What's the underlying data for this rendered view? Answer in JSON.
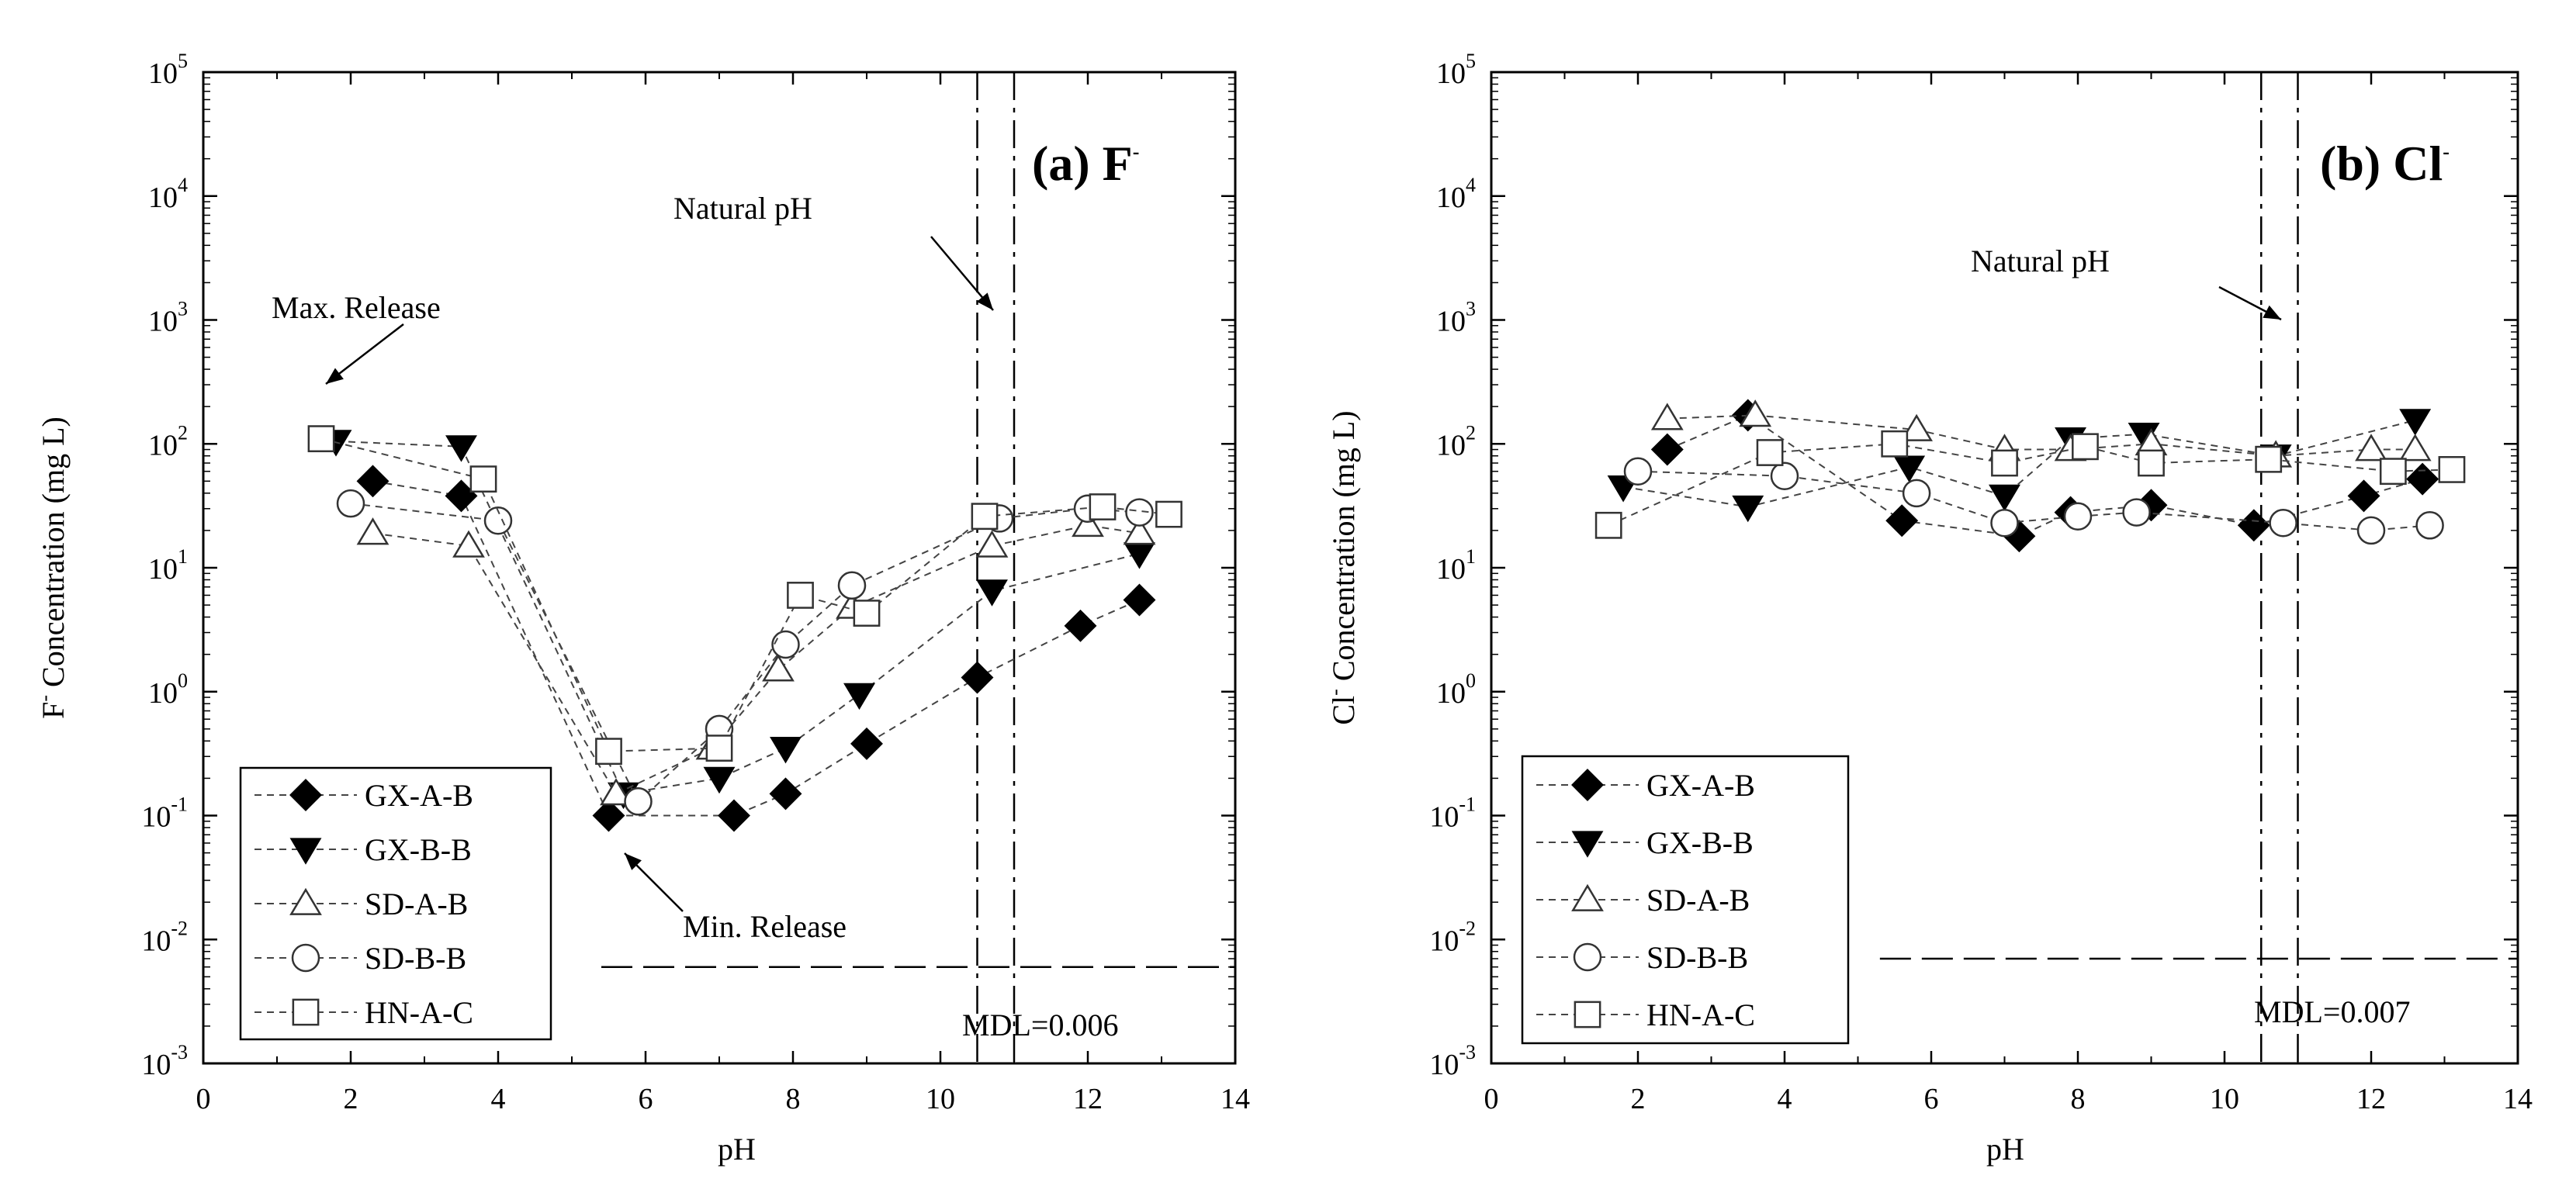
{
  "charts": [
    {
      "id": "a",
      "panel_title": "(a) F",
      "panel_title_sup": "-",
      "ylabel_main": "Concentration (mg L)",
      "ylabel_prefix": "F",
      "ylabel_sup": "-",
      "xlabel": "pH",
      "mdl_label": "MDL=0.006",
      "natural_ph_label": "Natural pH",
      "max_release_label": "Max. Release",
      "min_release_label": "Min. Release"
    },
    {
      "id": "b",
      "panel_title": "(b) Cl",
      "panel_title_sup": "-",
      "ylabel_main": "Concentration (mg L)",
      "ylabel_prefix": "Cl",
      "ylabel_sup": "-",
      "xlabel": "pH",
      "mdl_label": "MDL=0.007",
      "natural_ph_label": "Natural pH"
    }
  ],
  "chart_data": [
    {
      "type": "scatter",
      "title": "(a) F-",
      "xlabel": "pH",
      "ylabel": "F- Concentration (mg L)",
      "xlim": [
        0,
        14
      ],
      "ylim": [
        0.001,
        100000
      ],
      "yscale": "log",
      "x_ticks": [
        "0",
        "2",
        "4",
        "6",
        "8",
        "10",
        "12",
        "14"
      ],
      "y_ticks": [
        {
          "base": "10",
          "exp": "5"
        },
        {
          "base": "10",
          "exp": "4"
        },
        {
          "base": "10",
          "exp": "3"
        },
        {
          "base": "10",
          "exp": "2"
        },
        {
          "base": "10",
          "exp": "1"
        },
        {
          "base": "10",
          "exp": "0"
        },
        {
          "base": "10",
          "exp": "-1"
        },
        {
          "base": "10",
          "exp": "-2"
        },
        {
          "base": "10",
          "exp": "-3"
        }
      ],
      "mdl": 0.006,
      "natural_ph": [
        10.5,
        11.0
      ],
      "series": [
        {
          "name": "GX-A-B",
          "marker": "diamond-filled",
          "x": [
            2.3,
            3.5,
            5.5,
            7.2,
            7.9,
            9.0,
            10.5,
            11.9,
            12.7
          ],
          "y": [
            50,
            38,
            0.1,
            0.1,
            0.15,
            0.38,
            1.3,
            3.4,
            5.5
          ]
        },
        {
          "name": "GX-B-B",
          "marker": "triangle-down-filled",
          "x": [
            1.8,
            3.5,
            5.7,
            7.0,
            7.9,
            8.9,
            10.7,
            12.7
          ],
          "y": [
            105,
            95,
            0.15,
            0.2,
            0.35,
            0.95,
            6.5,
            13
          ]
        },
        {
          "name": "SD-A-B",
          "marker": "triangle-up-open",
          "x": [
            2.3,
            3.6,
            5.6,
            6.9,
            7.8,
            8.8,
            10.7,
            12.0,
            12.7
          ],
          "y": [
            19,
            15,
            0.15,
            0.35,
            1.5,
            4.8,
            15,
            22,
            19
          ]
        },
        {
          "name": "SD-B-B",
          "marker": "circle-open",
          "x": [
            2.0,
            4.0,
            5.9,
            7.0,
            7.9,
            8.8,
            10.8,
            12.0,
            12.7
          ],
          "y": [
            33,
            24,
            0.13,
            0.5,
            2.4,
            7.2,
            25,
            30,
            28
          ]
        },
        {
          "name": "HN-A-C",
          "marker": "square-open",
          "x": [
            1.6,
            3.8,
            5.5,
            7.0,
            8.1,
            9.0,
            10.6,
            12.2,
            13.1
          ],
          "y": [
            110,
            52,
            0.33,
            0.35,
            6,
            4.3,
            26,
            31,
            27
          ]
        }
      ]
    },
    {
      "type": "scatter",
      "title": "(b) Cl-",
      "xlabel": "pH",
      "ylabel": "Cl- Concentration (mg L)",
      "xlim": [
        0,
        14
      ],
      "ylim": [
        0.001,
        100000
      ],
      "yscale": "log",
      "x_ticks": [
        "0",
        "2",
        "4",
        "6",
        "8",
        "10",
        "12",
        "14"
      ],
      "y_ticks": [
        {
          "base": "10",
          "exp": "5"
        },
        {
          "base": "10",
          "exp": "4"
        },
        {
          "base": "10",
          "exp": "3"
        },
        {
          "base": "10",
          "exp": "2"
        },
        {
          "base": "10",
          "exp": "1"
        },
        {
          "base": "10",
          "exp": "0"
        },
        {
          "base": "10",
          "exp": "-1"
        },
        {
          "base": "10",
          "exp": "-2"
        },
        {
          "base": "10",
          "exp": "-3"
        }
      ],
      "mdl": 0.007,
      "natural_ph": [
        10.5,
        11.0
      ],
      "series": [
        {
          "name": "GX-A-B",
          "marker": "diamond-filled",
          "x": [
            2.4,
            3.5,
            5.6,
            7.2,
            7.9,
            9.0,
            10.4,
            11.9,
            12.7
          ],
          "y": [
            90,
            170,
            24,
            18,
            28,
            32,
            22,
            38,
            52
          ]
        },
        {
          "name": "GX-B-B",
          "marker": "triangle-down-filled",
          "x": [
            1.8,
            3.5,
            5.7,
            7.0,
            7.9,
            8.9,
            10.7,
            12.6
          ],
          "y": [
            45,
            31,
            65,
            38,
            110,
            120,
            80,
            155
          ]
        },
        {
          "name": "SD-A-B",
          "marker": "triangle-up-open",
          "x": [
            2.4,
            3.6,
            5.8,
            7.0,
            7.9,
            9.0,
            10.7,
            12.0,
            12.6
          ],
          "y": [
            160,
            170,
            130,
            90,
            90,
            100,
            80,
            90,
            90
          ]
        },
        {
          "name": "SD-B-B",
          "marker": "circle-open",
          "x": [
            2.0,
            4.0,
            5.8,
            7.0,
            8.0,
            8.8,
            10.8,
            12.0,
            12.8
          ],
          "y": [
            60,
            55,
            40,
            23,
            26,
            28,
            23,
            20,
            22
          ]
        },
        {
          "name": "HN-A-C",
          "marker": "square-open",
          "x": [
            1.6,
            3.8,
            5.5,
            7.0,
            8.1,
            9.0,
            10.6,
            12.3,
            13.1
          ],
          "y": [
            22,
            85,
            100,
            70,
            95,
            70,
            75,
            60,
            62
          ]
        }
      ]
    }
  ]
}
